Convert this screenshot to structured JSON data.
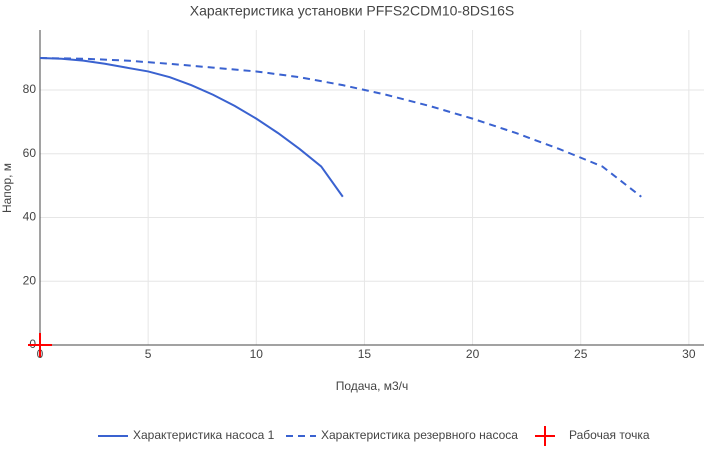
{
  "chart_data": {
    "type": "line",
    "title": "Характеристика установки PFFS2CDM10-8DS16S",
    "x_label": "Подача, м3/ч",
    "y_label": "Напор, м",
    "xlim": [
      0,
      30.7
    ],
    "xticks": [
      0,
      5,
      10,
      15,
      20,
      25,
      30
    ],
    "ylim": [
      0,
      98.8
    ],
    "yticks": [
      0,
      20,
      40,
      60,
      80
    ],
    "grid": true,
    "legend": "bottom",
    "series": [
      {
        "name": "Характеристика насоса 1",
        "color": "#3a62d0",
        "line_style": "solid",
        "x": [
          0,
          1,
          2,
          3,
          4,
          5,
          6,
          7,
          8,
          9,
          10,
          11,
          12,
          13,
          14
        ],
        "values": [
          90,
          89.8,
          89.2,
          88.2,
          87,
          85.8,
          84,
          81.5,
          78.5,
          75,
          71,
          66.5,
          61.5,
          56,
          46.5
        ]
      },
      {
        "name": "Характеристика резервного насоса",
        "color": "#3a62d0",
        "line_style": "dash",
        "x": [
          0,
          2,
          4,
          6,
          8,
          10,
          12,
          14,
          16,
          18,
          20,
          22,
          24,
          26,
          27.8
        ],
        "values": [
          90,
          89.8,
          89.2,
          88.2,
          87,
          85.8,
          84,
          81.5,
          78.5,
          75,
          71,
          66.5,
          61.5,
          56,
          46.5
        ]
      },
      {
        "name": "Рабочая точка",
        "color": "#ff0000",
        "marker": "cross",
        "x": [
          0
        ],
        "values": [
          0
        ]
      }
    ]
  }
}
